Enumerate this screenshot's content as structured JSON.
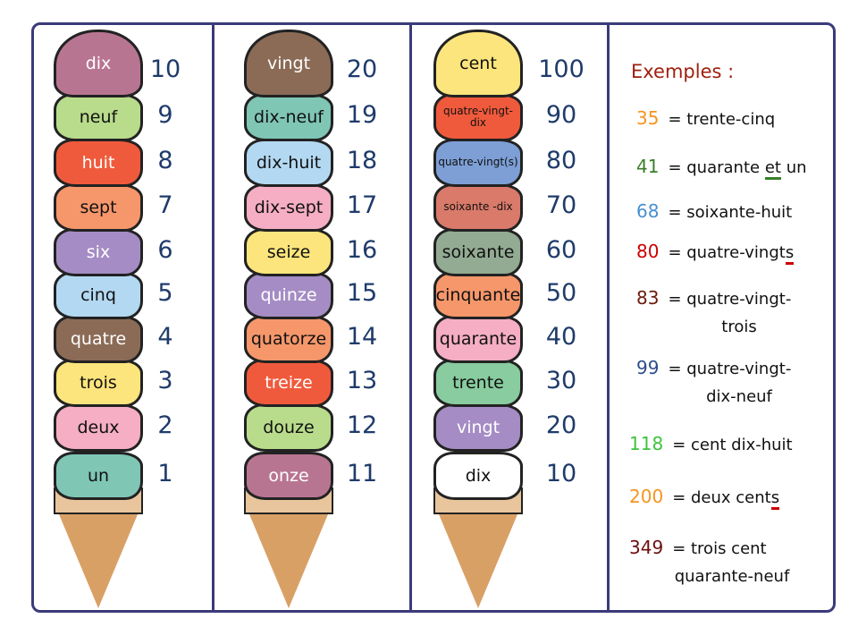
{
  "number_color": "#1f3b6b",
  "columns": [
    {
      "scoops": [
        {
          "word": "dix",
          "number": "10",
          "color": "#b87591",
          "text_color": "#ffffff"
        },
        {
          "word": "neuf",
          "number": "9",
          "color": "#b9dc8c",
          "text_color": "#111111"
        },
        {
          "word": "huit",
          "number": "8",
          "color": "#f05a3c",
          "text_color": "#ffffff"
        },
        {
          "word": "sept",
          "number": "7",
          "color": "#f6976b",
          "text_color": "#111111"
        },
        {
          "word": "six",
          "number": "6",
          "color": "#a58cc4",
          "text_color": "#ffffff"
        },
        {
          "word": "cinq",
          "number": "5",
          "color": "#b3d8f2",
          "text_color": "#111111"
        },
        {
          "word": "quatre",
          "number": "4",
          "color": "#8b6b56",
          "text_color": "#ffffff"
        },
        {
          "word": "trois",
          "number": "3",
          "color": "#fce57c",
          "text_color": "#111111"
        },
        {
          "word": "deux",
          "number": "2",
          "color": "#f5aec4",
          "text_color": "#111111"
        },
        {
          "word": "un",
          "number": "1",
          "color": "#7fc6b5",
          "text_color": "#111111"
        }
      ]
    },
    {
      "scoops": [
        {
          "word": "vingt",
          "number": "20",
          "color": "#8b6b56",
          "text_color": "#ffffff"
        },
        {
          "word": "dix-neuf",
          "number": "19",
          "color": "#7fc6b5",
          "text_color": "#111111"
        },
        {
          "word": "dix-huit",
          "number": "18",
          "color": "#b3d8f2",
          "text_color": "#111111"
        },
        {
          "word": "dix-sept",
          "number": "17",
          "color": "#f5aec4",
          "text_color": "#111111"
        },
        {
          "word": "seize",
          "number": "16",
          "color": "#fce57c",
          "text_color": "#111111"
        },
        {
          "word": "quinze",
          "number": "15",
          "color": "#a58cc4",
          "text_color": "#ffffff"
        },
        {
          "word": "quatorze",
          "number": "14",
          "color": "#f6976b",
          "text_color": "#111111"
        },
        {
          "word": "treize",
          "number": "13",
          "color": "#f05a3c",
          "text_color": "#ffffff"
        },
        {
          "word": "douze",
          "number": "12",
          "color": "#b9dc8c",
          "text_color": "#111111"
        },
        {
          "word": "onze",
          "number": "11",
          "color": "#b87591",
          "text_color": "#ffffff"
        }
      ]
    },
    {
      "scoops": [
        {
          "word": "cent",
          "number": "100",
          "color": "#fce57c",
          "text_color": "#111111"
        },
        {
          "word": "quatre-vingt-dix",
          "number": "90",
          "color": "#f05a3c",
          "text_color": "#111111",
          "small": true
        },
        {
          "word": "quatre-vingt(s)",
          "number": "80",
          "color": "#7d9fd6",
          "text_color": "#111111",
          "small": true
        },
        {
          "word": "soixante -dix",
          "number": "70",
          "color": "#d97a6a",
          "text_color": "#111111",
          "small": true
        },
        {
          "word": "soixante",
          "number": "60",
          "color": "#92ab92",
          "text_color": "#111111"
        },
        {
          "word": "cinquante",
          "number": "50",
          "color": "#f6976b",
          "text_color": "#111111"
        },
        {
          "word": "quarante",
          "number": "40",
          "color": "#f5aec4",
          "text_color": "#111111"
        },
        {
          "word": "trente",
          "number": "30",
          "color": "#88cc9f",
          "text_color": "#111111"
        },
        {
          "word": "vingt",
          "number": "20",
          "color": "#a58cc4",
          "text_color": "#ffffff"
        },
        {
          "word": "dix",
          "number": "10",
          "color": "#ffffff",
          "text_color": "#111111"
        }
      ]
    }
  ],
  "examples": {
    "title": "Exemples :",
    "items": [
      {
        "number": "35",
        "color": "#f7931e",
        "text": "= trente-cinq",
        "underlined": "",
        "after": "",
        "cont": ""
      },
      {
        "number": "41",
        "color": "#3a7d2a",
        "text": "= quarante ",
        "underlined": "et",
        "after": " un",
        "underline_color": "#3a7d2a",
        "cont": ""
      },
      {
        "number": "68",
        "color": "#4a8fd0",
        "text": "= soixante-huit",
        "underlined": "",
        "after": "",
        "cont": ""
      },
      {
        "number": "80",
        "color": "#cc0000",
        "text": "= quatre-vingt",
        "underlined": "s",
        "after": "",
        "underline_color": "#cc0000",
        "cont": ""
      },
      {
        "number": "83",
        "color": "#6b1a0a",
        "text": "= quatre-vingt-",
        "underlined": "",
        "after": "",
        "cont": "trois"
      },
      {
        "number": "99",
        "color": "#2c4e8c",
        "text": "= quatre-vingt-",
        "underlined": "",
        "after": "",
        "cont": "dix-neuf"
      },
      {
        "number": "118",
        "color": "#3cc43c",
        "text": "= cent dix-huit",
        "underlined": "",
        "after": "",
        "cont": ""
      },
      {
        "number": "200",
        "color": "#f7931e",
        "text": "= deux cent",
        "underlined": "s",
        "after": "",
        "underline_color": "#cc0000",
        "cont": ""
      },
      {
        "number": "349",
        "color": "#6b1010",
        "text": "= trois cent",
        "underlined": "",
        "after": "",
        "cont": "quarante-neuf"
      }
    ]
  }
}
